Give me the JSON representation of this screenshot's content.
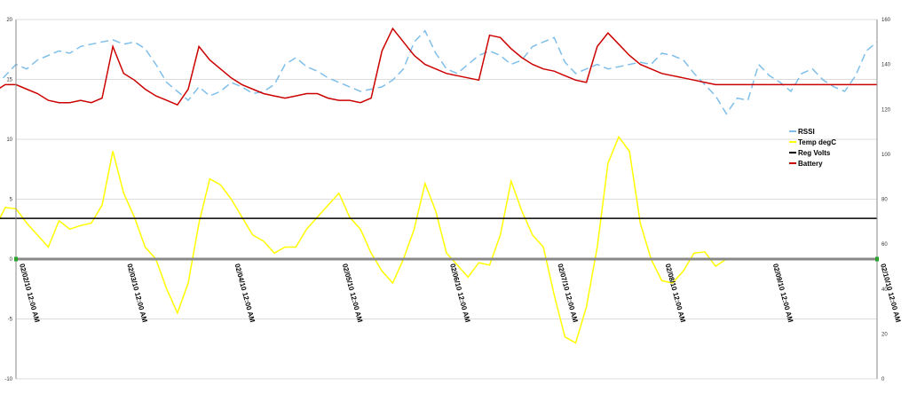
{
  "chart_data": {
    "type": "line",
    "title": "",
    "xlabel": "",
    "ylabel": "",
    "x_ticks": [
      "02/02/10 12:00 AM",
      "02/03/10 12:00 AM",
      "02/04/10 12:00 AM",
      "02/05/10 12:00 AM",
      "02/06/10 12:00 AM",
      "02/07/10 12:00 AM",
      "02/08/10 12:00 AM",
      "02/09/10 12:00 AM",
      "02/10/10 12:00 AM"
    ],
    "xlim": [
      0,
      8
    ],
    "y_left": {
      "ticks": [
        "20",
        "15",
        "10",
        "5",
        "0",
        "-5",
        "-10"
      ],
      "lim": [
        -10,
        20
      ]
    },
    "y_right": {
      "ticks": [
        "160",
        "140",
        "120",
        "100",
        "80",
        "60",
        "40",
        "20",
        "0"
      ],
      "lim": [
        0,
        160
      ]
    },
    "grid": true,
    "legend_position": "right",
    "series": [
      {
        "name": "RSSI",
        "axis": "right",
        "color": "#7fbfea",
        "dashed": true,
        "x": [
          -0.2,
          -0.1,
          0,
          0.1,
          0.2,
          0.3,
          0.4,
          0.5,
          0.6,
          0.7,
          0.8,
          0.9,
          1.0,
          1.1,
          1.2,
          1.3,
          1.4,
          1.5,
          1.6,
          1.7,
          1.8,
          1.9,
          2.0,
          2.1,
          2.2,
          2.3,
          2.4,
          2.5,
          2.6,
          2.7,
          2.8,
          2.9,
          3.0,
          3.1,
          3.2,
          3.3,
          3.4,
          3.5,
          3.6,
          3.7,
          3.8,
          3.9,
          4.0,
          4.1,
          4.2,
          4.3,
          4.4,
          4.5,
          4.6,
          4.7,
          4.8,
          4.9,
          5.0,
          5.1,
          5.2,
          5.3,
          5.4,
          5.5,
          5.6,
          5.7,
          5.8,
          5.9,
          6.0,
          6.1,
          6.2,
          6.3,
          6.4,
          6.5,
          6.6,
          6.7,
          6.8,
          6.9,
          7.0,
          7.1,
          7.2,
          7.3,
          7.4,
          7.5,
          7.6,
          7.7,
          7.8,
          7.9,
          8.0
        ],
        "y": [
          130,
          135,
          140,
          138,
          142,
          144,
          146,
          145,
          148,
          149,
          150,
          151,
          149,
          150,
          147,
          140,
          132,
          128,
          124,
          130,
          126,
          128,
          132,
          130,
          127,
          128,
          131,
          140,
          143,
          139,
          137,
          134,
          132,
          130,
          128,
          129,
          130,
          133,
          138,
          150,
          155,
          145,
          138,
          136,
          140,
          144,
          146,
          144,
          140,
          142,
          148,
          150,
          152,
          141,
          136,
          138,
          140,
          138,
          139,
          140,
          141,
          140,
          145,
          144,
          142,
          136,
          131,
          126,
          118,
          125,
          124,
          140,
          135,
          132,
          128,
          136,
          138,
          133,
          130,
          128,
          135,
          146,
          150
        ]
      },
      {
        "name": "Temp degC",
        "axis": "left",
        "color": "#ffff00",
        "x": [
          -0.2,
          -0.1,
          0,
          0.1,
          0.2,
          0.3,
          0.4,
          0.5,
          0.6,
          0.7,
          0.8,
          0.9,
          1.0,
          1.1,
          1.2,
          1.3,
          1.4,
          1.5,
          1.6,
          1.7,
          1.8,
          1.9,
          2.0,
          2.1,
          2.2,
          2.3,
          2.4,
          2.5,
          2.6,
          2.7,
          2.8,
          2.9,
          3.0,
          3.1,
          3.2,
          3.3,
          3.4,
          3.5,
          3.6,
          3.7,
          3.8,
          3.9,
          4.0,
          4.1,
          4.2,
          4.3,
          4.4,
          4.5,
          4.6,
          4.7,
          4.8,
          4.9,
          5.0,
          5.1,
          5.2,
          5.3,
          5.4,
          5.5,
          5.6,
          5.7,
          5.8,
          5.9,
          6.0,
          6.1,
          6.2,
          6.3,
          6.4,
          6.5,
          6.6,
          6.7,
          6.8,
          6.9,
          7.0,
          7.1,
          7.2,
          7.3,
          7.4,
          7.5,
          7.6,
          7.7,
          7.8,
          7.9,
          8.0
        ],
        "y": [
          2.5,
          4.3,
          4.2,
          3.0,
          2.0,
          1.0,
          3.2,
          2.5,
          2.8,
          3.0,
          4.5,
          9.0,
          5.5,
          3.5,
          1.0,
          0.0,
          -2.5,
          -4.5,
          -2.0,
          3.0,
          6.7,
          6.2,
          5.0,
          3.5,
          2.0,
          1.5,
          0.5,
          1.0,
          1.0,
          2.5,
          3.5,
          4.5,
          5.5,
          3.5,
          2.5,
          0.5,
          -1.0,
          -2.0,
          0.0,
          2.5,
          6.3,
          4.0,
          0.5,
          -0.5,
          -1.5,
          -0.3,
          -0.5,
          2.0,
          6.5,
          4.0,
          2.0,
          1.0,
          -3.0,
          -6.5,
          -7.0,
          -4.0,
          1.0,
          8.0,
          10.2,
          9.0,
          3.0,
          0.0,
          -1.8,
          -2.0,
          -1.0,
          0.5,
          0.6,
          -0.6,
          0.0,
          0.0,
          0.0,
          0.0,
          0.0,
          0.0,
          0.0,
          0.0,
          0.0,
          0.0,
          0.0,
          0.0,
          0.0,
          0.0,
          0.0
        ]
      },
      {
        "name": "Reg Volts",
        "axis": "left",
        "color": "#000000",
        "x": [
          -0.2,
          8.0
        ],
        "y": [
          3.4,
          3.4
        ]
      },
      {
        "name": "Battery",
        "axis": "right",
        "color": "#cc0000",
        "x": [
          -0.2,
          -0.1,
          0,
          0.1,
          0.2,
          0.3,
          0.4,
          0.5,
          0.6,
          0.7,
          0.8,
          0.9,
          1.0,
          1.1,
          1.2,
          1.3,
          1.4,
          1.5,
          1.6,
          1.7,
          1.8,
          1.9,
          2.0,
          2.1,
          2.2,
          2.3,
          2.4,
          2.5,
          2.6,
          2.7,
          2.8,
          2.9,
          3.0,
          3.1,
          3.2,
          3.3,
          3.4,
          3.5,
          3.6,
          3.7,
          3.8,
          3.9,
          4.0,
          4.1,
          4.2,
          4.3,
          4.4,
          4.5,
          4.6,
          4.7,
          4.8,
          4.9,
          5.0,
          5.1,
          5.2,
          5.3,
          5.4,
          5.5,
          5.6,
          5.7,
          5.8,
          5.9,
          6.0,
          6.1,
          6.2,
          6.3,
          6.4,
          6.5,
          6.6,
          6.7,
          6.8,
          6.9,
          7.0,
          7.1,
          7.2,
          7.3,
          7.4,
          7.5,
          7.6,
          7.7,
          7.8,
          7.9,
          8.0
        ],
        "y": [
          128,
          131,
          131,
          129,
          127,
          124,
          123,
          123,
          124,
          123,
          125,
          148,
          136,
          133,
          129,
          126,
          124,
          122,
          129,
          148,
          142,
          138,
          134,
          131,
          129,
          127,
          126,
          125,
          126,
          127,
          127,
          125,
          124,
          124,
          123,
          125,
          146,
          156,
          150,
          144,
          140,
          138,
          136,
          135,
          134,
          133,
          153,
          152,
          147,
          143,
          140,
          138,
          137,
          135,
          133,
          132,
          148,
          154,
          149,
          144,
          140,
          138,
          136,
          135,
          134,
          133,
          132,
          131,
          131,
          131,
          131,
          131,
          131,
          131,
          131,
          131,
          131,
          131,
          131,
          131,
          131,
          131,
          131
        ]
      }
    ]
  }
}
